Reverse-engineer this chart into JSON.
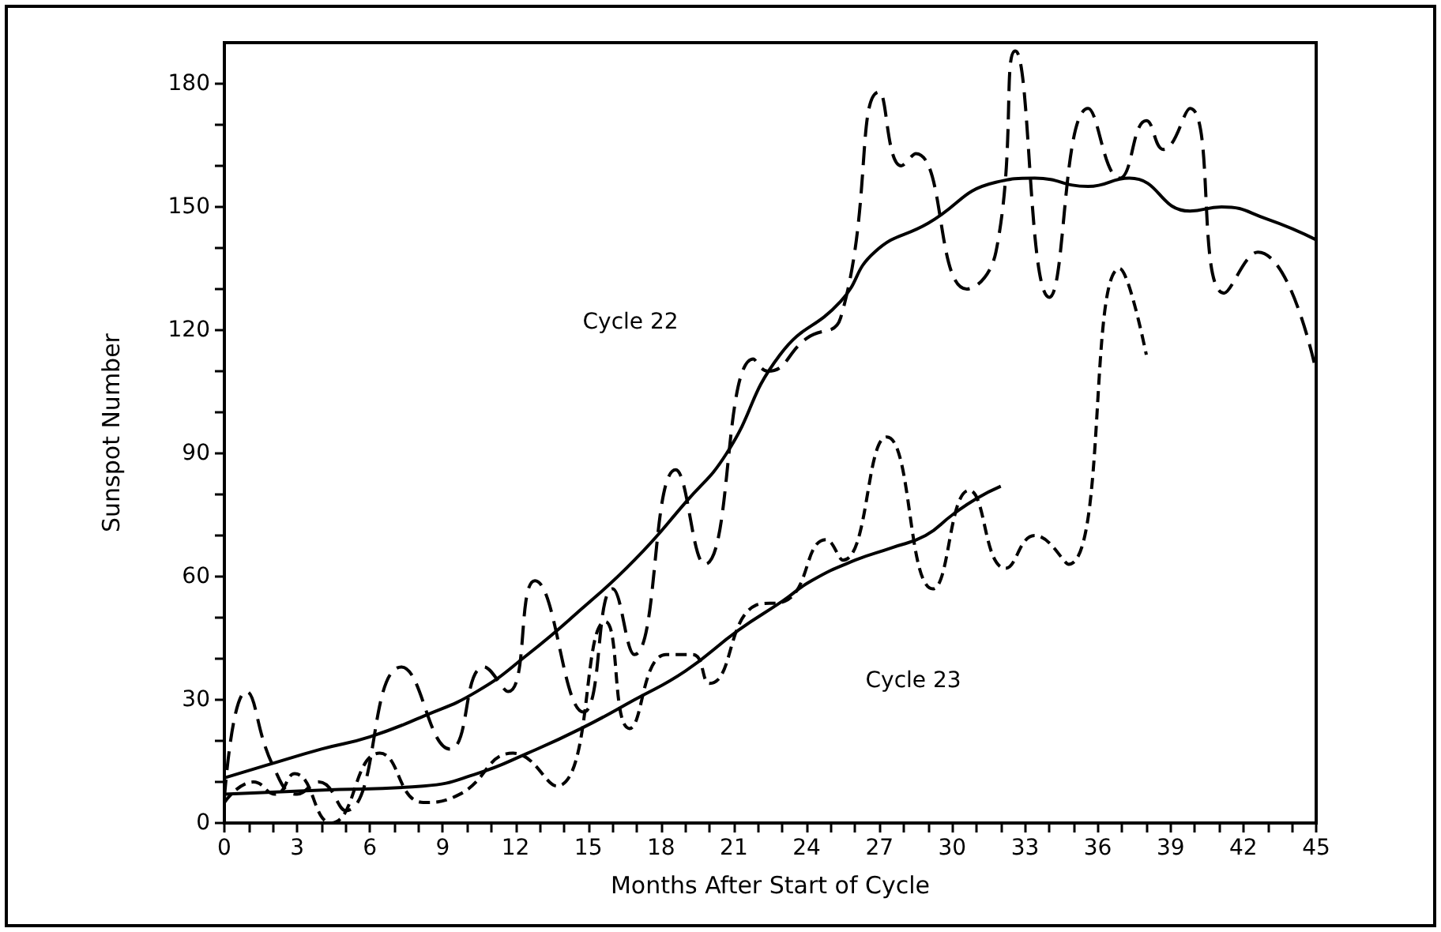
{
  "chart_data": {
    "type": "line",
    "xlabel": "Months After Start of Cycle",
    "ylabel": "Sunspot Number",
    "marker": "none",
    "xlim": [
      0,
      45
    ],
    "ylim": [
      0,
      190
    ],
    "xticks": [
      0,
      {
        "value": 1,
        "label": null
      },
      {
        "value": 2,
        "label": null
      },
      3,
      {
        "value": 4,
        "label": null
      },
      {
        "value": 5,
        "label": null
      },
      6,
      {
        "value": 7,
        "label": null
      },
      {
        "value": 8,
        "label": null
      },
      9,
      {
        "value": 10,
        "label": null
      },
      {
        "value": 11,
        "label": null
      },
      12,
      {
        "value": 13,
        "label": null
      },
      {
        "value": 14,
        "label": null
      },
      15,
      {
        "value": 16,
        "label": null
      },
      {
        "value": 17,
        "label": null
      },
      18,
      {
        "value": 19,
        "label": null
      },
      {
        "value": 20,
        "label": null
      },
      21,
      {
        "value": 22,
        "label": null
      },
      {
        "value": 23,
        "label": null
      },
      24,
      {
        "value": 25,
        "label": null
      },
      {
        "value": 26,
        "label": null
      },
      27,
      {
        "value": 28,
        "label": null
      },
      {
        "value": 29,
        "label": null
      },
      30,
      {
        "value": 31,
        "label": null
      },
      {
        "value": 32,
        "label": null
      },
      33,
      {
        "value": 34,
        "label": null
      },
      {
        "value": 35,
        "label": null
      },
      36,
      {
        "value": 37,
        "label": null
      },
      {
        "value": 38,
        "label": null
      },
      39,
      {
        "value": 40,
        "label": null
      },
      {
        "value": 41,
        "label": null
      },
      42,
      {
        "value": 43,
        "label": null
      },
      {
        "value": 44,
        "label": null
      },
      45
    ],
    "yticks": [
      0,
      {
        "value": 10,
        "label": null
      },
      {
        "value": 20,
        "label": null
      },
      30,
      {
        "value": 40,
        "label": null
      },
      {
        "value": 50,
        "label": null
      },
      60,
      {
        "value": 70,
        "label": null
      },
      {
        "value": 80,
        "label": null
      },
      90,
      {
        "value": 100,
        "label": null
      },
      {
        "value": 110,
        "label": null
      },
      120,
      {
        "value": 130,
        "label": null
      },
      {
        "value": 140,
        "label": null
      },
      150,
      {
        "value": 160,
        "label": null
      },
      {
        "value": 170,
        "label": null
      },
      180
    ],
    "series": [
      {
        "color": "#000000",
        "line_style": "dashed",
        "x": [
          0,
          0.9,
          2,
          3,
          3.9,
          5,
          7.3,
          9.3,
          10.7,
          11.7,
          12.8,
          14.8,
          16,
          16.9,
          18.6,
          19.8,
          21.8,
          22.4,
          24,
          25.4,
          27,
          27.9,
          28.5,
          30.6,
          31.8,
          32.6,
          34,
          35.6,
          36.9,
          38,
          38.7,
          39.8,
          41.2,
          42.6,
          45
        ],
        "values": [
          6,
          32,
          14,
          7,
          10,
          3,
          38,
          18,
          38,
          32,
          59,
          27,
          57,
          41,
          86,
          63,
          113,
          110,
          118,
          123,
          178,
          160,
          163,
          130,
          139,
          188,
          128,
          174,
          157,
          171,
          164,
          174,
          129,
          139,
          110
        ]
      },
      {
        "color": "#000000",
        "line_style": "solid",
        "x": [
          0,
          1.7,
          4,
          6,
          8.2,
          10.4,
          12.5,
          14.7,
          16.9,
          19,
          20.7,
          22.9,
          25.4,
          26.8,
          29,
          31.8,
          33.4,
          35.6,
          37.3,
          39.8,
          41.1,
          43,
          45
        ],
        "values": [
          11,
          14,
          18,
          21,
          26,
          32,
          41,
          52,
          64,
          78,
          90,
          114,
          127,
          139,
          146,
          156,
          157,
          155,
          157,
          149,
          150,
          147,
          142
        ]
      },
      {
        "color": "#000000",
        "line_style": "dashed",
        "x": [
          0,
          1.2,
          2.1,
          2.9,
          4.4,
          6.4,
          8.2,
          9.7,
          11.9,
          13.7,
          15.7,
          16.7,
          18.2,
          19.3,
          20,
          21.9,
          23.1,
          24.8,
          25.5,
          27.3,
          29.2,
          30.7,
          32.2,
          33.4,
          34.8,
          36.9,
          38
        ],
        "values": [
          5,
          10,
          7,
          12,
          0,
          17,
          5,
          7,
          17,
          9,
          49,
          23,
          41,
          41,
          34,
          53,
          54,
          69,
          64,
          94,
          57,
          81,
          62,
          70,
          63,
          135,
          114
        ]
      },
      {
        "color": "#000000",
        "line_style": "solid",
        "x": [
          0,
          3.9,
          8.2,
          10.4,
          12.5,
          14.7,
          16.9,
          19,
          21.2,
          23,
          24.2,
          26,
          27.5,
          28.9,
          30,
          31,
          32
        ],
        "values": [
          7,
          8,
          9,
          12,
          17,
          23,
          30,
          37,
          47,
          54,
          59,
          64,
          67,
          70,
          75,
          79,
          82
        ]
      }
    ],
    "annotations": [
      "Cycle 22",
      "Cycle 23"
    ]
  }
}
